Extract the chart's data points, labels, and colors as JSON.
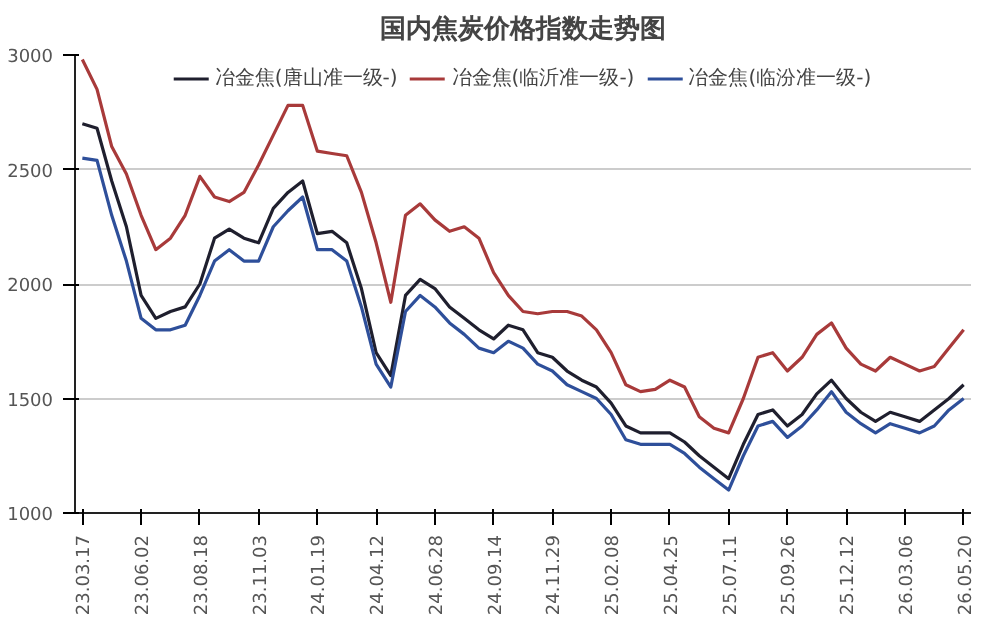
{
  "chart_data": {
    "type": "line",
    "title": "国内焦炭价格指数走势图",
    "categories": [
      "23.03.17",
      null,
      null,
      null,
      "23.06.02",
      null,
      null,
      null,
      "23.08.18",
      null,
      null,
      null,
      "23.11.03",
      null,
      null,
      null,
      "24.01.19",
      null,
      null,
      null,
      "24.04.12",
      null,
      null,
      null,
      "24.06.28",
      null,
      null,
      null,
      "24.09.14",
      null,
      null,
      null,
      "24.11.29",
      null,
      null,
      null,
      "25.02.08",
      null,
      null,
      null,
      "25.04.25",
      null,
      null,
      null,
      "25.07.11",
      null,
      null,
      null,
      "25.09.26",
      null,
      null,
      null,
      "25.12.12",
      null,
      null,
      null,
      "26.03.06",
      null,
      null,
      null,
      "26.05.20"
    ],
    "series": [
      {
        "name": "冶金焦(唐山准一级-)",
        "color": "#1f1f2e",
        "values": [
          2700,
          2680,
          2450,
          2250,
          1950,
          1850,
          1880,
          1900,
          2000,
          2200,
          2240,
          2200,
          2180,
          2330,
          2400,
          2450,
          2220,
          2230,
          2180,
          1980,
          1700,
          1600,
          1950,
          2020,
          1980,
          1900,
          1850,
          1800,
          1760,
          1820,
          1800,
          1700,
          1680,
          1620,
          1580,
          1550,
          1480,
          1380,
          1350,
          1350,
          1350,
          1310,
          1250,
          1200,
          1150,
          1300,
          1430,
          1450,
          1380,
          1430,
          1520,
          1580,
          1500,
          1440,
          1400,
          1440,
          1420,
          1400,
          1450,
          1500,
          1560
        ]
      },
      {
        "name": "冶金焦(临沂准一级-)",
        "color": "#a83a3a",
        "values": [
          2980,
          2850,
          2600,
          2480,
          2300,
          2150,
          2200,
          2300,
          2470,
          2380,
          2360,
          2400,
          2520,
          2650,
          2780,
          2780,
          2580,
          2570,
          2560,
          2400,
          2180,
          1920,
          2300,
          2350,
          2280,
          2230,
          2250,
          2200,
          2050,
          1950,
          1880,
          1870,
          1880,
          1880,
          1860,
          1800,
          1700,
          1560,
          1530,
          1540,
          1580,
          1550,
          1420,
          1370,
          1350,
          1500,
          1680,
          1700,
          1620,
          1680,
          1780,
          1830,
          1720,
          1650,
          1620,
          1680,
          1650,
          1620,
          1640,
          1720,
          1800
        ]
      },
      {
        "name": "冶金焦(临汾准一级-)",
        "color": "#2e4f9a",
        "values": [
          2550,
          2540,
          2300,
          2100,
          1850,
          1800,
          1800,
          1820,
          1950,
          2100,
          2150,
          2100,
          2100,
          2250,
          2320,
          2380,
          2150,
          2150,
          2100,
          1900,
          1650,
          1550,
          1880,
          1950,
          1900,
          1830,
          1780,
          1720,
          1700,
          1750,
          1720,
          1650,
          1620,
          1560,
          1530,
          1500,
          1430,
          1320,
          1300,
          1300,
          1300,
          1260,
          1200,
          1150,
          1100,
          1250,
          1380,
          1400,
          1330,
          1380,
          1450,
          1530,
          1440,
          1390,
          1350,
          1390,
          1370,
          1350,
          1380,
          1450,
          1500
        ]
      }
    ],
    "ylim": [
      1000,
      3000
    ],
    "yticks": [
      1000,
      1500,
      2000,
      2500,
      3000
    ],
    "grid": "y",
    "legend": "top",
    "line_style": "solid"
  }
}
